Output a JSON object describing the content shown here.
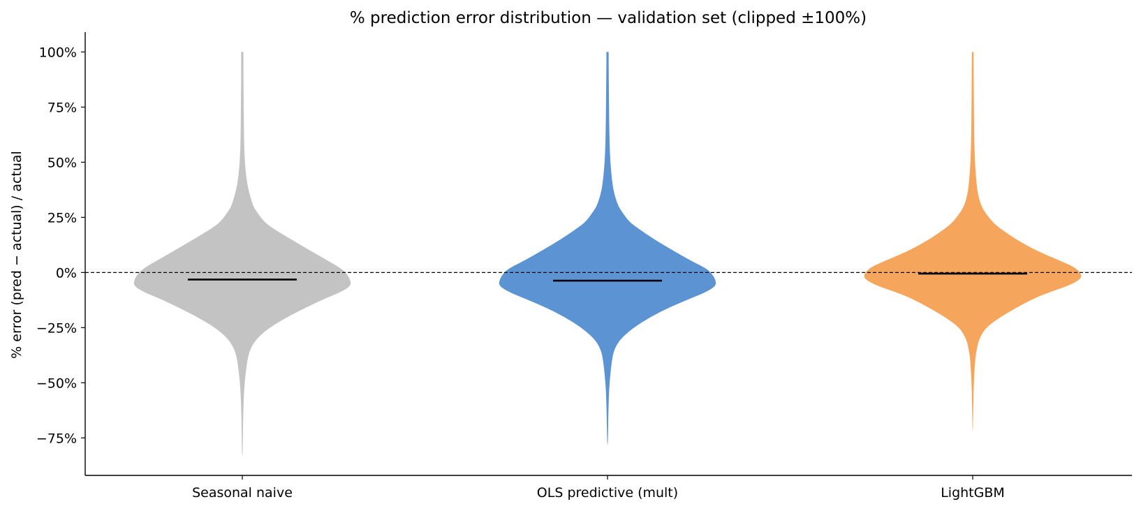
{
  "chart_data": {
    "type": "violin",
    "title": "% prediction error distribution — validation set (clipped ±100%)",
    "ylabel": "% error  (pred − actual) / actual",
    "xlabel": "",
    "ylim": [
      -92,
      109
    ],
    "y_ticks": [
      100,
      75,
      50,
      25,
      0,
      -25,
      -50,
      -75
    ],
    "y_tick_labels": [
      "100%",
      "75%",
      "50%",
      "25%",
      "0%",
      "−25%",
      "−50%",
      "−75%"
    ],
    "reference_line": 0,
    "grid": false,
    "legend": "none",
    "categories": [
      "Seasonal naive",
      "OLS predictive (mult)",
      "LightGBM"
    ],
    "series": [
      {
        "color": "#c3c3c3",
        "median": -3.2,
        "min": -83,
        "max": 100,
        "density_profile": [
          [
            100,
            0.01
          ],
          [
            90,
            0.01
          ],
          [
            80,
            0.012
          ],
          [
            70,
            0.014
          ],
          [
            60,
            0.016
          ],
          [
            50,
            0.022
          ],
          [
            40,
            0.045
          ],
          [
            35,
            0.07
          ],
          [
            30,
            0.1
          ],
          [
            27,
            0.14
          ],
          [
            23,
            0.2
          ],
          [
            20,
            0.28
          ],
          [
            15,
            0.45
          ],
          [
            10,
            0.62
          ],
          [
            5,
            0.8
          ],
          [
            2,
            0.9
          ],
          [
            0,
            0.95
          ],
          [
            -3,
            0.99
          ],
          [
            -6,
            1.0
          ],
          [
            -9,
            0.9
          ],
          [
            -12,
            0.75
          ],
          [
            -16,
            0.58
          ],
          [
            -20,
            0.42
          ],
          [
            -25,
            0.25
          ],
          [
            -30,
            0.13
          ],
          [
            -35,
            0.07
          ],
          [
            -40,
            0.045
          ],
          [
            -48,
            0.025
          ],
          [
            -55,
            0.015
          ],
          [
            -65,
            0.008
          ],
          [
            -75,
            0.005
          ],
          [
            -83,
            0.003
          ]
        ]
      },
      {
        "color": "#5b93d3",
        "median": -3.7,
        "min": -78,
        "max": 100,
        "density_profile": [
          [
            100,
            0.01
          ],
          [
            90,
            0.011
          ],
          [
            80,
            0.013
          ],
          [
            70,
            0.015
          ],
          [
            60,
            0.018
          ],
          [
            50,
            0.025
          ],
          [
            40,
            0.045
          ],
          [
            35,
            0.065
          ],
          [
            30,
            0.1
          ],
          [
            27,
            0.14
          ],
          [
            23,
            0.2
          ],
          [
            20,
            0.28
          ],
          [
            15,
            0.43
          ],
          [
            10,
            0.6
          ],
          [
            5,
            0.78
          ],
          [
            2,
            0.9
          ],
          [
            0,
            0.95
          ],
          [
            -3,
            0.99
          ],
          [
            -6,
            1.0
          ],
          [
            -9,
            0.9
          ],
          [
            -12,
            0.75
          ],
          [
            -16,
            0.56
          ],
          [
            -20,
            0.4
          ],
          [
            -25,
            0.24
          ],
          [
            -30,
            0.12
          ],
          [
            -35,
            0.06
          ],
          [
            -40,
            0.04
          ],
          [
            -48,
            0.022
          ],
          [
            -55,
            0.013
          ],
          [
            -65,
            0.007
          ],
          [
            -78,
            0.003
          ]
        ]
      },
      {
        "color": "#f6a65c",
        "median": -0.5,
        "min": -72,
        "max": 100,
        "density_profile": [
          [
            100,
            0.008
          ],
          [
            90,
            0.009
          ],
          [
            80,
            0.01
          ],
          [
            70,
            0.012
          ],
          [
            60,
            0.014
          ],
          [
            50,
            0.02
          ],
          [
            40,
            0.035
          ],
          [
            35,
            0.05
          ],
          [
            30,
            0.08
          ],
          [
            26,
            0.13
          ],
          [
            22,
            0.2
          ],
          [
            19,
            0.28
          ],
          [
            15,
            0.4
          ],
          [
            10,
            0.58
          ],
          [
            5,
            0.82
          ],
          [
            2,
            0.95
          ],
          [
            -1,
            1.0
          ],
          [
            -3,
            0.99
          ],
          [
            -6,
            0.88
          ],
          [
            -9,
            0.7
          ],
          [
            -12,
            0.55
          ],
          [
            -16,
            0.4
          ],
          [
            -20,
            0.26
          ],
          [
            -25,
            0.12
          ],
          [
            -30,
            0.06
          ],
          [
            -35,
            0.035
          ],
          [
            -40,
            0.022
          ],
          [
            -48,
            0.012
          ],
          [
            -55,
            0.008
          ],
          [
            -62,
            0.005
          ],
          [
            -72,
            0.002
          ]
        ]
      }
    ]
  }
}
